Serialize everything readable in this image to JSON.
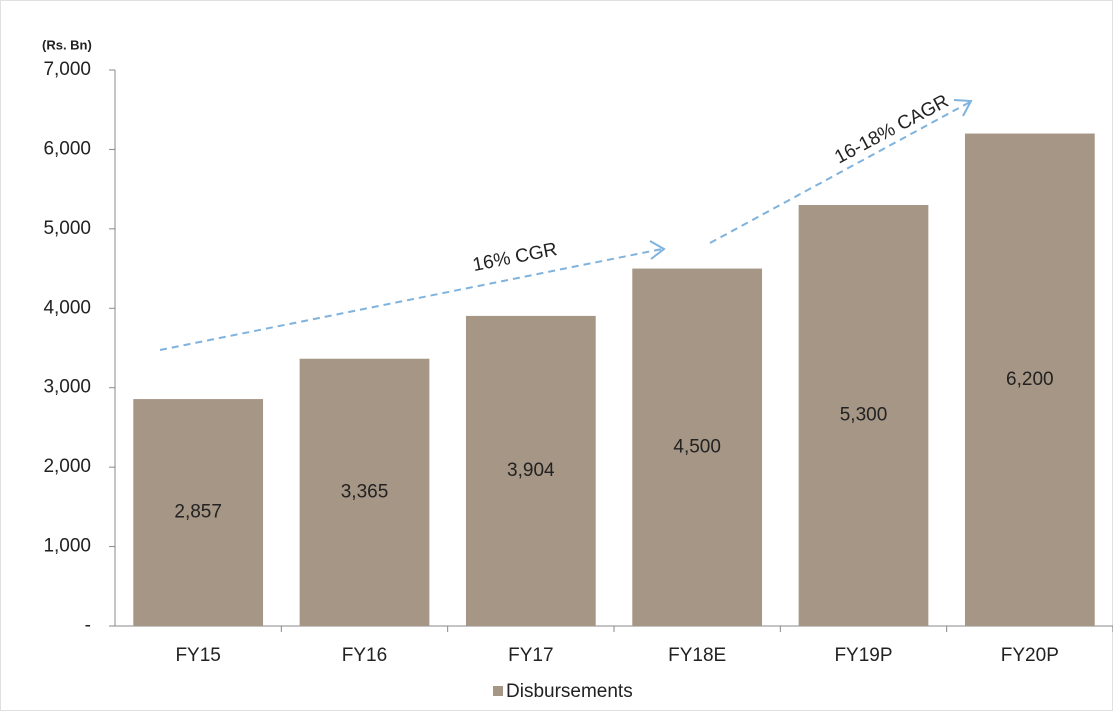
{
  "chart_data": {
    "type": "bar",
    "y_axis_label": "(Rs. Bn)",
    "categories": [
      "FY15",
      "FY16",
      "FY17",
      "FY18E",
      "FY19P",
      "FY20P"
    ],
    "series": [
      {
        "name": "Disbursements",
        "color": "#a69685",
        "values": [
          2857,
          3365,
          3904,
          4500,
          5300,
          6200
        ],
        "value_labels": [
          "2,857",
          "3,365",
          "3,904",
          "4,500",
          "5,300",
          "6,200"
        ]
      }
    ],
    "ylim": [
      0,
      7000
    ],
    "yticks": [
      {
        "value": 0,
        "label": "-"
      },
      {
        "value": 1000,
        "label": "1,000"
      },
      {
        "value": 2000,
        "label": "2,000"
      },
      {
        "value": 3000,
        "label": "3,000"
      },
      {
        "value": 4000,
        "label": "4,000"
      },
      {
        "value": 5000,
        "label": "5,000"
      },
      {
        "value": 6000,
        "label": "6,000"
      },
      {
        "value": 7000,
        "label": "7,000"
      }
    ],
    "annotations": [
      "16% CGR",
      "16-18% CAGR"
    ],
    "legend": "bottom"
  }
}
